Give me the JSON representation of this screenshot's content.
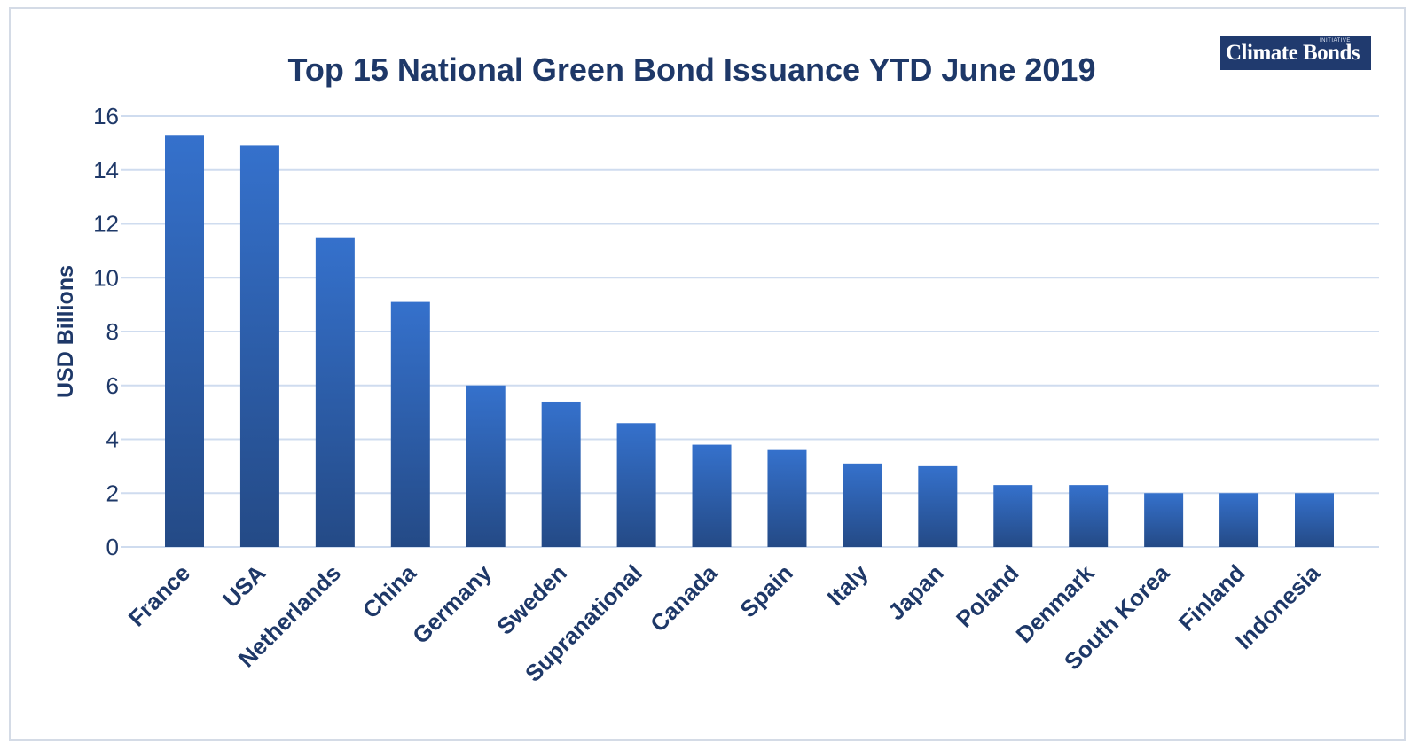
{
  "chart_data": {
    "type": "bar",
    "title": "Top 15 National Green Bond Issuance YTD June 2019",
    "xlabel": "",
    "ylabel": "USD Billions",
    "ylim": [
      0,
      16
    ],
    "yticks": [
      0,
      2,
      4,
      6,
      8,
      10,
      12,
      14,
      16
    ],
    "grid": true,
    "legend": "none",
    "categories": [
      "France",
      "USA",
      "Netherlands",
      "China",
      "Germany",
      "Sweden",
      "Supranational",
      "Canada",
      "Spain",
      "Italy",
      "Japan",
      "Poland",
      "Denmark",
      "South Korea",
      "Finland",
      "Indonesia"
    ],
    "values": [
      15.3,
      14.9,
      11.5,
      9.1,
      6.0,
      5.4,
      4.6,
      3.8,
      3.6,
      3.1,
      3.0,
      2.3,
      2.3,
      2.0,
      2.0,
      2.0
    ],
    "colors": {
      "bar_top": "#3571cc",
      "bar_bottom": "#244a86",
      "grid": "#cfdcef",
      "text": "#1e3868"
    }
  },
  "logo": {
    "text": "Climate Bonds",
    "small_text": "INITIATIVE"
  }
}
